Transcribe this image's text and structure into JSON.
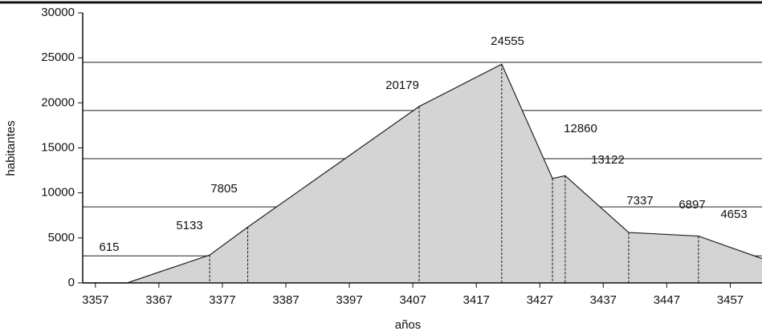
{
  "chart_data": {
    "type": "area",
    "x_label": "años",
    "y_label": "habitantes",
    "x": [
      3355,
      3362,
      3375,
      3381,
      3408,
      3421,
      3429,
      3431,
      3441,
      3452,
      3462
    ],
    "series": [
      {
        "color": "#d4d4d4",
        "values": [
          0,
          0,
          3100,
          6200,
          19600,
          24300,
          11600,
          11900,
          5600,
          5200,
          2700
        ]
      }
    ],
    "annotations": [
      615,
      5133,
      7805,
      20179,
      24555,
      12860,
      13122,
      7337,
      6897,
      4653
    ],
    "hlines": [
      3000,
      8450,
      13800,
      19150,
      24500
    ],
    "xlim": [
      3355,
      3462
    ],
    "xticks": [
      3357,
      3367,
      3377,
      3387,
      3397,
      3407,
      3417,
      3427,
      3437,
      3447,
      3457
    ],
    "ylim": [
      0,
      30000
    ],
    "yticks": [
      0,
      5000,
      10000,
      15000,
      20000,
      25000,
      30000
    ]
  }
}
